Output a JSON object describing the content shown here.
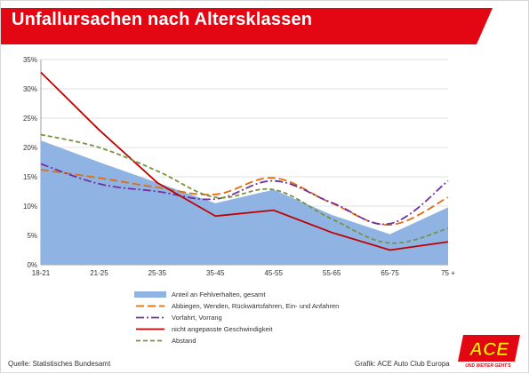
{
  "header": {
    "title": "Unfallursachen nach Altersklassen"
  },
  "footer": {
    "source": "Quelle: Statistisches Bundesamt",
    "credit": "Grafik: ACE Auto Club Europa"
  },
  "logo": {
    "text": "ACE",
    "tagline": "UND WEITER GEHT'S"
  },
  "colors": {
    "banner": "#e30613",
    "area": "#8fb4e3",
    "orange": "#e46c0a",
    "purple": "#7030a0",
    "red": "#c00000",
    "green": "#77933c"
  },
  "chart_data": {
    "type": "line",
    "title": "Unfallursachen nach Altersklassen",
    "xlabel": "",
    "ylabel": "",
    "categories": [
      "18-21",
      "21-25",
      "25-35",
      "35-45",
      "45-55",
      "55-65",
      "65-75",
      "75 +"
    ],
    "y_tick_labels": [
      "0%",
      "5%",
      "10%",
      "15%",
      "20%",
      "25%",
      "30%",
      "35%"
    ],
    "ylim": [
      0,
      35
    ],
    "grid": true,
    "legend_position": "bottom",
    "series": [
      {
        "name": "Anteil an Fehlverhalten, gesamt",
        "style": "area",
        "color": "#8fb4e3",
        "values": [
          21.2,
          17.5,
          14.0,
          10.5,
          12.8,
          8.5,
          5.2,
          9.8
        ]
      },
      {
        "name": "Abbiegen, Wenden, Rückwärtsfahren, Ein- und Anfahren",
        "style": "dash",
        "color": "#e46c0a",
        "values": [
          16.2,
          14.8,
          13.2,
          12.0,
          14.8,
          10.5,
          6.8,
          11.5
        ]
      },
      {
        "name": "Vorfahrt, Vorrang",
        "style": "dashdot",
        "color": "#7030a0",
        "values": [
          17.2,
          13.8,
          12.5,
          11.2,
          14.3,
          10.6,
          7.0,
          14.3
        ]
      },
      {
        "name": "nicht angepasste Geschwindigkeit",
        "style": "solid",
        "color": "#c00000",
        "values": [
          32.8,
          23.0,
          14.0,
          8.3,
          9.3,
          5.5,
          2.5,
          3.9
        ]
      },
      {
        "name": "Abstand",
        "style": "shortdash",
        "color": "#77933c",
        "values": [
          22.2,
          20.0,
          16.0,
          11.5,
          12.8,
          7.8,
          3.7,
          6.2
        ]
      }
    ]
  }
}
